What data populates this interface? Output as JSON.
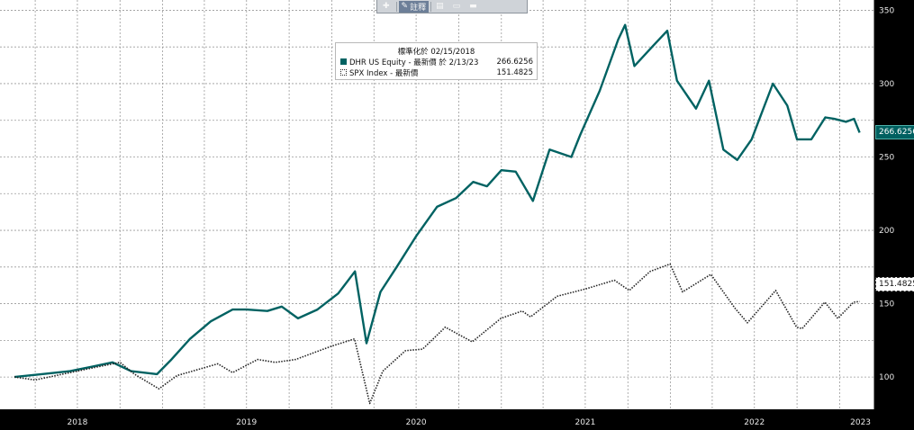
{
  "toolbar": {
    "items": [
      {
        "icon": "plus-icon",
        "label": "",
        "active": false
      },
      {
        "icon": "pencil-icon",
        "label": "註釋",
        "active": true
      },
      {
        "icon": "news-icon",
        "label": "",
        "active": false
      },
      {
        "icon": "document-icon",
        "label": "",
        "active": false
      },
      {
        "icon": "minus-icon",
        "label": "",
        "active": false
      }
    ]
  },
  "legend": {
    "title": "標準化於 02/15/2018",
    "entries": [
      {
        "label": "DHR US Equity - 最新價 於 2/13/23",
        "value": "266.6256",
        "color": "#006262",
        "style": "solid"
      },
      {
        "label": "SPX Index - 最新價",
        "value": "151.4825",
        "color": "#222222",
        "style": "dotted"
      }
    ]
  },
  "last_value_tags": {
    "dhr": "266.6256",
    "spx": "151.4825"
  },
  "chart_data": {
    "type": "line",
    "title": "",
    "xlabel": "",
    "ylabel": "",
    "x_ticks": [
      "2018",
      "2019",
      "2020",
      "2021",
      "2022",
      "2023"
    ],
    "y_ticks": [
      100,
      150,
      200,
      250,
      300,
      350
    ],
    "ylim": [
      78,
      357
    ],
    "xlim": [
      "2018-01-15",
      "2023-03-15"
    ],
    "grid": true,
    "legend_position": "top-center",
    "series": [
      {
        "name": "DHR US Equity - 最新價 於 2/13/23",
        "color": "#006262",
        "style": "solid",
        "points": [
          [
            "2018-02-15",
            100
          ],
          [
            "2018-04-15",
            102
          ],
          [
            "2018-06-15",
            104
          ],
          [
            "2018-08-01",
            107
          ],
          [
            "2018-09-15",
            110
          ],
          [
            "2018-10-25",
            104
          ],
          [
            "2018-12-20",
            102
          ],
          [
            "2019-01-20",
            112
          ],
          [
            "2019-03-01",
            126
          ],
          [
            "2019-04-15",
            138
          ],
          [
            "2019-06-01",
            146
          ],
          [
            "2019-07-01",
            146
          ],
          [
            "2019-08-15",
            145
          ],
          [
            "2019-09-15",
            148
          ],
          [
            "2019-10-20",
            140
          ],
          [
            "2019-12-01",
            146
          ],
          [
            "2020-01-15",
            157
          ],
          [
            "2020-02-20",
            172
          ],
          [
            "2020-03-16",
            123
          ],
          [
            "2020-04-15",
            158
          ],
          [
            "2020-05-20",
            175
          ],
          [
            "2020-07-01",
            196
          ],
          [
            "2020-08-15",
            216
          ],
          [
            "2020-09-25",
            222
          ],
          [
            "2020-11-01",
            233
          ],
          [
            "2020-12-01",
            230
          ],
          [
            "2021-01-01",
            241
          ],
          [
            "2021-02-01",
            240
          ],
          [
            "2021-03-10",
            220
          ],
          [
            "2021-04-15",
            255
          ],
          [
            "2021-06-01",
            250
          ],
          [
            "2021-06-20",
            265
          ],
          [
            "2021-08-01",
            295
          ],
          [
            "2021-09-10",
            330
          ],
          [
            "2021-09-25",
            340
          ],
          [
            "2021-10-15",
            312
          ],
          [
            "2021-11-25",
            326
          ],
          [
            "2021-12-25",
            336
          ],
          [
            "2022-01-15",
            302
          ],
          [
            "2022-02-25",
            283
          ],
          [
            "2022-03-25",
            302
          ],
          [
            "2022-04-25",
            255
          ],
          [
            "2022-05-25",
            248
          ],
          [
            "2022-06-25",
            262
          ],
          [
            "2022-08-10",
            300
          ],
          [
            "2022-09-10",
            285
          ],
          [
            "2022-10-01",
            262
          ],
          [
            "2022-11-01",
            262
          ],
          [
            "2022-12-01",
            277
          ],
          [
            "2022-12-20",
            276
          ],
          [
            "2023-01-15",
            274
          ],
          [
            "2023-02-01",
            276
          ],
          [
            "2023-02-13",
            266.6256
          ]
        ]
      },
      {
        "name": "SPX Index - 最新價",
        "color": "#222222",
        "style": "dotted",
        "points": [
          [
            "2018-02-15",
            100
          ],
          [
            "2018-04-01",
            98
          ],
          [
            "2018-06-15",
            103
          ],
          [
            "2018-08-15",
            107
          ],
          [
            "2018-10-01",
            110
          ],
          [
            "2018-11-01",
            102
          ],
          [
            "2018-12-24",
            92
          ],
          [
            "2019-02-01",
            101
          ],
          [
            "2019-04-30",
            109
          ],
          [
            "2019-06-01",
            103
          ],
          [
            "2019-07-25",
            112
          ],
          [
            "2019-09-01",
            110
          ],
          [
            "2019-10-15",
            112
          ],
          [
            "2019-12-31",
            121
          ],
          [
            "2020-02-19",
            126
          ],
          [
            "2020-03-23",
            82
          ],
          [
            "2020-04-20",
            104
          ],
          [
            "2020-06-08",
            118
          ],
          [
            "2020-07-15",
            119
          ],
          [
            "2020-09-02",
            134
          ],
          [
            "2020-10-30",
            124
          ],
          [
            "2020-12-31",
            140
          ],
          [
            "2021-02-15",
            145
          ],
          [
            "2021-03-05",
            141
          ],
          [
            "2021-05-01",
            155
          ],
          [
            "2021-07-01",
            160
          ],
          [
            "2021-09-02",
            166
          ],
          [
            "2021-10-04",
            159
          ],
          [
            "2021-11-18",
            172
          ],
          [
            "2021-12-31",
            177
          ],
          [
            "2022-01-27",
            158
          ],
          [
            "2022-03-29",
            170
          ],
          [
            "2022-05-20",
            147
          ],
          [
            "2022-06-16",
            137
          ],
          [
            "2022-08-16",
            159
          ],
          [
            "2022-09-30",
            134
          ],
          [
            "2022-10-12",
            133
          ],
          [
            "2022-11-30",
            151
          ],
          [
            "2022-12-28",
            140
          ],
          [
            "2023-01-31",
            151
          ],
          [
            "2023-02-13",
            151.4825
          ]
        ]
      }
    ]
  }
}
